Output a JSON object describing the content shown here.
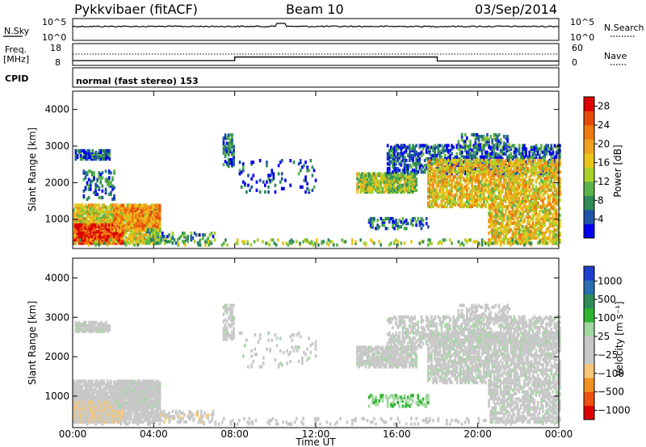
{
  "header": {
    "radar": "Pykkvibaer (fitACF)",
    "beam": "Beam 10",
    "date": "03/Sep/2014"
  },
  "noise_panel": {
    "left_label": "N.Sky",
    "right_label": "N.Search",
    "tick_top": "10^5",
    "tick_bottom": "10^0"
  },
  "freq_panel": {
    "left_label_line1": "Freq.",
    "left_label_line2": "[MHz]",
    "right_label": "Nave",
    "left_ticks": [
      "18",
      "8"
    ],
    "right_ticks": [
      "60",
      "0"
    ],
    "freq_steps": [
      {
        "start_h": 0.0,
        "freq": 10.2
      },
      {
        "start_h": 8.0,
        "freq": 11.8
      },
      {
        "start_h": 18.0,
        "freq": 10.0
      }
    ]
  },
  "cpid_panel": {
    "label": "CPID",
    "text": "normal (fast stereo) 153"
  },
  "colors": {
    "power": [
      "#0000ee",
      "#1f55a8",
      "#2e8b57",
      "#5cb34a",
      "#a8d02c",
      "#e9c51a",
      "#f0a020",
      "#ee7a10",
      "#e64a0a",
      "#dd0000"
    ],
    "velocity": [
      "#dd0000",
      "#ee5010",
      "#f39020",
      "#f5c878",
      "#c8c8c8",
      "#c8c8c8",
      "#a0d8a0",
      "#2fb52f",
      "#2e8b57",
      "#2a6fb0",
      "#1c3fcc"
    ]
  },
  "chart_data": [
    {
      "type": "heatmap",
      "quantity": "power",
      "ylabel": "Slant Range [km]",
      "xlim": [
        0,
        24
      ],
      "ylim": [
        200,
        4500
      ],
      "yticks": [
        1000,
        2000,
        3000,
        4000
      ],
      "xticks": [
        "00:00",
        "04:00",
        "08:00",
        "12:00",
        "16:00",
        "20:00",
        "00:00"
      ],
      "colorbar": {
        "label": "Power [dB]",
        "ticks": [
          "4",
          "8",
          "12",
          "16",
          "20",
          "24",
          "28"
        ],
        "range": [
          0,
          30
        ]
      },
      "regions": [
        {
          "t0": 0.1,
          "t1": 1.8,
          "r0": 2600,
          "r1": 2850,
          "p": 5,
          "dens": 0.7
        },
        {
          "t0": 0.0,
          "t1": 4.3,
          "r0": 300,
          "r1": 1350,
          "p": 16,
          "dens": 0.75
        },
        {
          "t0": 0.0,
          "t1": 2.5,
          "r0": 300,
          "r1": 800,
          "p": 26,
          "dens": 0.8
        },
        {
          "t0": 0.5,
          "t1": 2.0,
          "r0": 1500,
          "r1": 2300,
          "p": 6,
          "dens": 0.25
        },
        {
          "t0": 2.0,
          "t1": 4.3,
          "r0": 650,
          "r1": 1350,
          "p": 21,
          "dens": 0.6
        },
        {
          "t0": 3.6,
          "t1": 4.3,
          "r0": 300,
          "r1": 700,
          "p": 10,
          "dens": 0.5
        },
        {
          "t0": 4.3,
          "t1": 7.0,
          "r0": 300,
          "r1": 600,
          "p": 8,
          "dens": 0.25
        },
        {
          "t0": 7.4,
          "t1": 7.9,
          "r0": 2400,
          "r1": 3300,
          "p": 6,
          "dens": 0.5
        },
        {
          "t0": 8.2,
          "t1": 12.0,
          "r0": 1700,
          "r1": 2600,
          "p": 4,
          "dens": 0.08
        },
        {
          "t0": 14.0,
          "t1": 17.0,
          "r0": 1700,
          "r1": 2200,
          "p": 13,
          "dens": 0.7
        },
        {
          "t0": 15.5,
          "t1": 24.0,
          "r0": 2200,
          "r1": 3000,
          "p": 5,
          "dens": 0.45
        },
        {
          "t0": 17.5,
          "t1": 24.0,
          "r0": 1300,
          "r1": 2600,
          "p": 17,
          "dens": 0.55
        },
        {
          "t0": 19.0,
          "t1": 21.5,
          "r0": 2900,
          "r1": 3300,
          "p": 7,
          "dens": 0.35
        },
        {
          "t0": 20.5,
          "t1": 24.0,
          "r0": 300,
          "r1": 1300,
          "p": 17,
          "dens": 0.5
        },
        {
          "t0": 14.5,
          "t1": 17.5,
          "r0": 700,
          "r1": 1000,
          "p": 6,
          "dens": 0.3
        },
        {
          "t0": 0.0,
          "t1": 24.0,
          "r0": 250,
          "r1": 400,
          "p": 12,
          "dens": 0.15
        }
      ]
    },
    {
      "type": "heatmap",
      "quantity": "velocity",
      "ylabel": "Slant Range [km]",
      "xlabel": "Time UT",
      "xlim": [
        0,
        24
      ],
      "ylim": [
        200,
        4500
      ],
      "yticks": [
        1000,
        2000,
        3000,
        4000
      ],
      "xticks": [
        "00:00",
        "04:00",
        "08:00",
        "12:00",
        "16:00",
        "20:00",
        "00:00"
      ],
      "colorbar": {
        "label": "Velocity [m s⁻¹]",
        "ticks": [
          "1000",
          "500",
          "100",
          "25",
          "−25",
          "−100",
          "−500",
          "−1000"
        ],
        "range": [
          -1200,
          1200
        ]
      },
      "regions": [
        {
          "t0": 0.1,
          "t1": 1.8,
          "r0": 2600,
          "r1": 2850,
          "v": 0,
          "dens": 0.7
        },
        {
          "t0": 0.0,
          "t1": 4.3,
          "r0": 300,
          "r1": 1350,
          "v": -150,
          "dens": 0.75
        },
        {
          "t0": 0.0,
          "t1": 2.5,
          "r0": 300,
          "r1": 800,
          "v": -300,
          "dens": 0.8
        },
        {
          "t0": 2.0,
          "t1": 4.3,
          "r0": 650,
          "r1": 1350,
          "v": 0,
          "dens": 0.6
        },
        {
          "t0": 4.3,
          "t1": 7.0,
          "r0": 300,
          "r1": 600,
          "v": -250,
          "dens": 0.25
        },
        {
          "t0": 7.4,
          "t1": 7.9,
          "r0": 2400,
          "r1": 3300,
          "v": 0,
          "dens": 0.5
        },
        {
          "t0": 8.2,
          "t1": 12.0,
          "r0": 1700,
          "r1": 2600,
          "v": 0,
          "dens": 0.08
        },
        {
          "t0": 14.0,
          "t1": 17.0,
          "r0": 1700,
          "r1": 2200,
          "v": 0,
          "dens": 0.7
        },
        {
          "t0": 15.5,
          "t1": 24.0,
          "r0": 2200,
          "r1": 3000,
          "v": 0,
          "dens": 0.45
        },
        {
          "t0": 17.5,
          "t1": 24.0,
          "r0": 1300,
          "r1": 2600,
          "v": 10,
          "dens": 0.55
        },
        {
          "t0": 19.0,
          "t1": 21.5,
          "r0": 2900,
          "r1": 3300,
          "v": -80,
          "dens": 0.35
        },
        {
          "t0": 20.5,
          "t1": 24.0,
          "r0": 300,
          "r1": 1300,
          "v": 0,
          "dens": 0.5
        },
        {
          "t0": 14.5,
          "t1": 17.5,
          "r0": 700,
          "r1": 1000,
          "v": 300,
          "dens": 0.3
        },
        {
          "t0": 0.0,
          "t1": 24.0,
          "r0": 250,
          "r1": 400,
          "v": -60,
          "dens": 0.15
        }
      ]
    }
  ]
}
